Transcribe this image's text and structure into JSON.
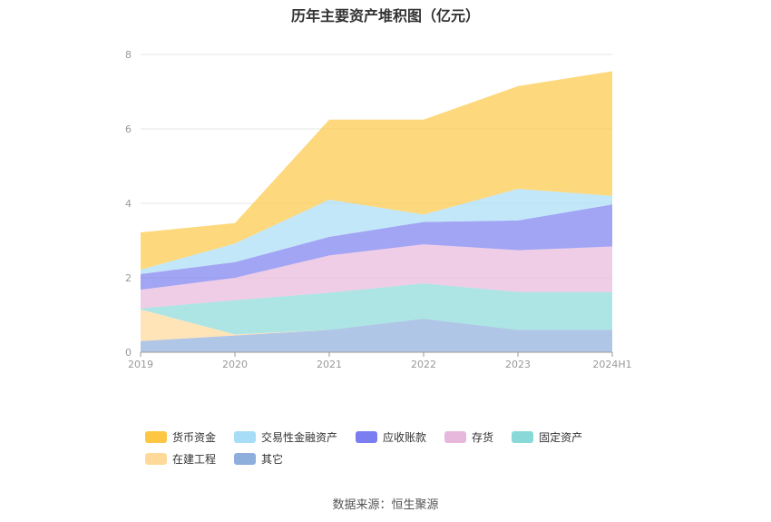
{
  "chart_data": {
    "type": "area",
    "stacked": true,
    "title": "历年主要资产堆积图（亿元）",
    "categories": [
      "2019",
      "2020",
      "2021",
      "2022",
      "2023",
      "2024H1"
    ],
    "ylim": [
      0,
      8
    ],
    "yticks": [
      "0",
      "2",
      "4",
      "6",
      "8"
    ],
    "grid": true,
    "legend_position": "bottom",
    "series": [
      {
        "name": "其它",
        "color": "#8eaedc",
        "values": [
          0.3,
          0.45,
          0.6,
          0.9,
          0.6,
          0.6
        ]
      },
      {
        "name": "在建工程",
        "color": "#ffd99a",
        "values": [
          0.85,
          0.03,
          0.0,
          0.0,
          0.0,
          0.0
        ]
      },
      {
        "name": "固定资产",
        "color": "#8ad9d9",
        "values": [
          0.03,
          0.92,
          1.0,
          0.95,
          1.02,
          1.02
        ]
      },
      {
        "name": "存货",
        "color": "#e8b8dc",
        "values": [
          0.5,
          0.6,
          1.0,
          1.05,
          1.12,
          1.22
        ]
      },
      {
        "name": "应收账款",
        "color": "#7b7ef0",
        "values": [
          0.42,
          0.42,
          0.5,
          0.6,
          0.8,
          1.13
        ]
      },
      {
        "name": "交易性金融资产",
        "color": "#a8ddf7",
        "values": [
          0.12,
          0.5,
          1.0,
          0.2,
          0.85,
          0.23
        ]
      },
      {
        "name": "货币资金",
        "color": "#fdc744",
        "values": [
          1.0,
          0.55,
          2.15,
          2.55,
          2.76,
          3.35
        ]
      }
    ],
    "source": "数据来源：恒生聚源"
  }
}
